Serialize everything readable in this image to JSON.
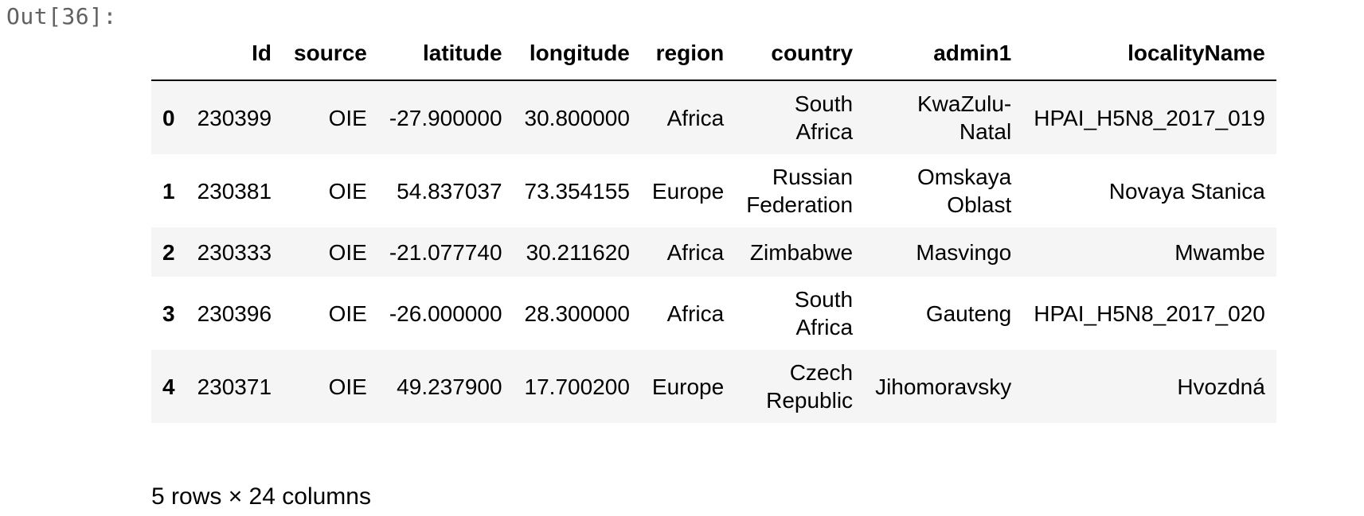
{
  "cell": {
    "prompt": "Out[36]:"
  },
  "dataframe": {
    "columns": [
      "",
      "Id",
      "source",
      "latitude",
      "longitude",
      "region",
      "country",
      "admin1",
      "localityName"
    ],
    "rows": [
      {
        "index": "0",
        "Id": "230399",
        "source": "OIE",
        "latitude": "-27.900000",
        "longitude": "30.800000",
        "region": "Africa",
        "country": [
          "South",
          "Africa"
        ],
        "admin1": [
          "KwaZulu-",
          "Natal"
        ],
        "localityName": "HPAI_H5N8_2017_019"
      },
      {
        "index": "1",
        "Id": "230381",
        "source": "OIE",
        "latitude": "54.837037",
        "longitude": "73.354155",
        "region": "Europe",
        "country": [
          "Russian",
          "Federation"
        ],
        "admin1": [
          "Omskaya",
          "Oblast"
        ],
        "localityName": "Novaya Stanica"
      },
      {
        "index": "2",
        "Id": "230333",
        "source": "OIE",
        "latitude": "-21.077740",
        "longitude": "30.211620",
        "region": "Africa",
        "country": [
          "Zimbabwe"
        ],
        "admin1": [
          "Masvingo"
        ],
        "localityName": "Mwambe"
      },
      {
        "index": "3",
        "Id": "230396",
        "source": "OIE",
        "latitude": "-26.000000",
        "longitude": "28.300000",
        "region": "Africa",
        "country": [
          "South",
          "Africa"
        ],
        "admin1": [
          "Gauteng"
        ],
        "localityName": "HPAI_H5N8_2017_020"
      },
      {
        "index": "4",
        "Id": "230371",
        "source": "OIE",
        "latitude": "49.237900",
        "longitude": "17.700200",
        "region": "Europe",
        "country": [
          "Czech",
          "Republic"
        ],
        "admin1": [
          "Jihomoravsky"
        ],
        "localityName": "Hvozdná"
      }
    ],
    "shape_text": "5 rows × 24 columns"
  }
}
